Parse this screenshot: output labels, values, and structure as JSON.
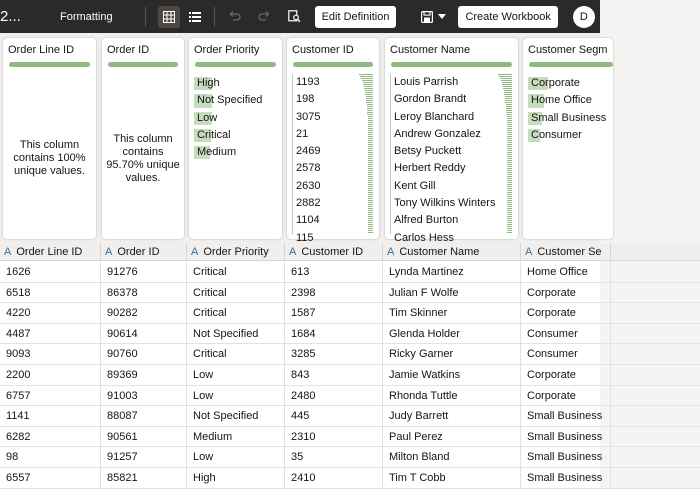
{
  "toolbar": {
    "title": "2...",
    "formatting_label": "Formatting",
    "edit_definition_label": "Edit Definition",
    "create_workbook_label": "Create Workbook",
    "avatar_initial": "D",
    "icons": [
      "grid-view-icon",
      "list-view-icon",
      "undo-icon",
      "redo-icon",
      "search-data-icon",
      "save-icon",
      "chevron-down-icon"
    ]
  },
  "profile": {
    "order_line_id": {
      "title": "Order Line ID",
      "unique_message": "This column contains 100% unique values."
    },
    "order_id": {
      "title": "Order ID",
      "unique_message": "This column contains 95.70% unique values."
    },
    "order_priority": {
      "title": "Order Priority",
      "values": [
        {
          "label": "High",
          "fill_fraction": 0.22
        },
        {
          "label": "Not Specified",
          "fill_fraction": 0.22
        },
        {
          "label": "Low",
          "fill_fraction": 0.22
        },
        {
          "label": "Critical",
          "fill_fraction": 0.2
        },
        {
          "label": "Medium",
          "fill_fraction": 0.19
        }
      ]
    },
    "customer_id": {
      "title": "Customer ID",
      "values": [
        "1193",
        "198",
        "3075",
        "21",
        "2469",
        "2578",
        "2630",
        "2882",
        "1104",
        "115"
      ]
    },
    "customer_name": {
      "title": "Customer Name",
      "values": [
        "Louis Parrish",
        "Gordon Brandt",
        "Leroy Blanchard",
        "Andrew Gonzalez",
        "Betsy Puckett",
        "Herbert Reddy",
        "Kent Gill",
        "Tony Wilkins Winters",
        "Alfred Burton",
        "Carlos Hess"
      ]
    },
    "customer_segment": {
      "title": "Customer Segm",
      "values": [
        {
          "label": "Corporate",
          "fill_fraction": 0.34
        },
        {
          "label": "Home Office",
          "fill_fraction": 0.26
        },
        {
          "label": "Small Business",
          "fill_fraction": 0.22
        },
        {
          "label": "Consumer",
          "fill_fraction": 0.18
        }
      ]
    }
  },
  "grid": {
    "type_glyph": "A",
    "headers": [
      "Order Line ID",
      "Order ID",
      "Order Priority",
      "Customer ID",
      "Customer Name",
      "Customer Se"
    ],
    "rows": [
      [
        "1626",
        "91276",
        "Critical",
        "613",
        "Lynda Martinez",
        "Home Office"
      ],
      [
        "6518",
        "86378",
        "Critical",
        "2398",
        "Julian F Wolfe",
        "Corporate"
      ],
      [
        "4220",
        "90282",
        "Critical",
        "1587",
        "Tim Skinner",
        "Corporate"
      ],
      [
        "4487",
        "90614",
        "Not Specified",
        "1684",
        "Glenda Holder",
        "Consumer"
      ],
      [
        "9093",
        "90760",
        "Critical",
        "3285",
        "Ricky Garner",
        "Consumer"
      ],
      [
        "2200",
        "89369",
        "Low",
        "843",
        "Jamie Watkins",
        "Corporate"
      ],
      [
        "6757",
        "91003",
        "Low",
        "2480",
        "Rhonda Tuttle",
        "Corporate"
      ],
      [
        "1141",
        "88087",
        "Not Specified",
        "445",
        "Judy Barrett",
        "Small Business"
      ],
      [
        "6282",
        "90561",
        "Medium",
        "2310",
        "Paul Perez",
        "Small Business"
      ],
      [
        "98",
        "91257",
        "Low",
        "35",
        "Milton Bland",
        "Small Business"
      ],
      [
        "6557",
        "85821",
        "High",
        "2410",
        "Tim T Cobb",
        "Small Business"
      ]
    ]
  },
  "colors": {
    "toolbar_bg": "#2c2a28",
    "accent_green": "#8fba7f",
    "light_green": "#c5dcbe",
    "type_blue": "#3a6f98"
  }
}
